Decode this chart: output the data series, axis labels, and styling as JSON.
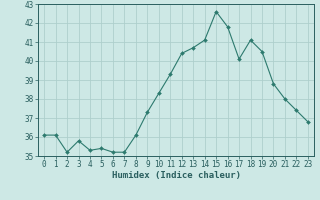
{
  "x": [
    0,
    1,
    2,
    3,
    4,
    5,
    6,
    7,
    8,
    9,
    10,
    11,
    12,
    13,
    14,
    15,
    16,
    17,
    18,
    19,
    20,
    21,
    22,
    23
  ],
  "y": [
    36.1,
    36.1,
    35.2,
    35.8,
    35.3,
    35.4,
    35.2,
    35.2,
    36.1,
    37.3,
    38.3,
    39.3,
    40.4,
    40.7,
    41.1,
    42.6,
    41.8,
    40.1,
    41.1,
    40.5,
    38.8,
    38.0,
    37.4,
    36.8
  ],
  "line_color": "#2d7a6e",
  "marker": "D",
  "marker_size": 2.0,
  "bg_color": "#cde8e5",
  "grid_color": "#aecfcc",
  "xlabel": "Humidex (Indice chaleur)",
  "ylim": [
    35,
    43
  ],
  "xlim": [
    -0.5,
    23.5
  ],
  "yticks": [
    35,
    36,
    37,
    38,
    39,
    40,
    41,
    42,
    43
  ],
  "xticks": [
    0,
    1,
    2,
    3,
    4,
    5,
    6,
    7,
    8,
    9,
    10,
    11,
    12,
    13,
    14,
    15,
    16,
    17,
    18,
    19,
    20,
    21,
    22,
    23
  ],
  "tick_color": "#2a5f5f",
  "label_color": "#2a5f5f",
  "font_size": 5.5,
  "xlabel_fontsize": 6.5
}
